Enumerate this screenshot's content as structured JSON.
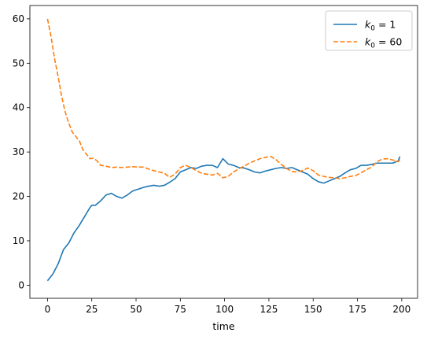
{
  "chart_data": {
    "type": "line",
    "title": "",
    "xlabel": "time",
    "ylabel": "",
    "xlim": [
      -9.95,
      208.95
    ],
    "ylim": [
      -2.95,
      63.0
    ],
    "xticks": [
      0,
      25,
      50,
      75,
      100,
      125,
      150,
      175,
      200
    ],
    "yticks": [
      0,
      10,
      20,
      30,
      40,
      50,
      60
    ],
    "grid": false,
    "legend_position": "top-right",
    "series": [
      {
        "name": "k0=1",
        "legend_base": "k",
        "legend_sub": "0",
        "legend_rest": " = 1",
        "color": "#1f77b4",
        "dash": "solid",
        "x": [
          0,
          3,
          6,
          9,
          12,
          15,
          18,
          21,
          24,
          25,
          27,
          30,
          33,
          36,
          39,
          42,
          45,
          48,
          51,
          54,
          57,
          60,
          63,
          66,
          69,
          72,
          75,
          78,
          81,
          84,
          87,
          90,
          93,
          96,
          99,
          102,
          105,
          108,
          111,
          114,
          117,
          120,
          123,
          126,
          129,
          132,
          135,
          138,
          141,
          144,
          147,
          150,
          153,
          156,
          159,
          162,
          165,
          168,
          171,
          174,
          177,
          180,
          183,
          186,
          189,
          192,
          195,
          198,
          199
        ],
        "y": [
          1,
          2.5,
          4.8,
          8,
          9.5,
          11.8,
          13.5,
          15.5,
          17.5,
          18,
          18,
          19,
          20.3,
          20.7,
          20,
          19.6,
          20.3,
          21.2,
          21.6,
          22,
          22.3,
          22.5,
          22.3,
          22.5,
          23.2,
          24,
          25.5,
          26,
          26.5,
          26.3,
          26.8,
          27,
          27,
          26.5,
          28.5,
          27.3,
          27,
          26.5,
          26.4,
          26,
          25.5,
          25.3,
          25.7,
          26,
          26.3,
          26.5,
          26.3,
          26.5,
          26,
          25.5,
          25,
          24,
          23.3,
          23,
          23.5,
          24,
          24.5,
          25.3,
          26,
          26.3,
          27,
          27,
          27.2,
          27.5,
          27.5,
          27.5,
          27.5,
          28,
          29
        ]
      },
      {
        "name": "k0=60",
        "legend_base": "k",
        "legend_sub": "0",
        "legend_rest": " = 60",
        "color": "#ff7f0e",
        "dash": "dashed",
        "x": [
          0,
          2,
          4,
          6,
          8,
          10,
          12,
          14,
          16,
          18,
          20,
          22,
          24,
          26,
          28,
          30,
          33,
          36,
          39,
          42,
          45,
          48,
          51,
          54,
          57,
          60,
          63,
          66,
          69,
          72,
          75,
          78,
          81,
          84,
          87,
          90,
          93,
          96,
          99,
          102,
          105,
          108,
          111,
          114,
          117,
          120,
          123,
          126,
          129,
          132,
          135,
          138,
          141,
          144,
          147,
          150,
          153,
          156,
          159,
          162,
          165,
          168,
          171,
          174,
          177,
          180,
          183,
          186,
          189,
          192,
          195,
          198,
          199
        ],
        "y": [
          60,
          56,
          51,
          47,
          42.5,
          39,
          36.5,
          34.5,
          33.5,
          32.5,
          30.5,
          29.5,
          28.5,
          28.6,
          28,
          27,
          26.8,
          26.5,
          26.6,
          26.5,
          26.6,
          26.7,
          26.6,
          26.6,
          26.2,
          25.8,
          25.5,
          25.2,
          24.3,
          25,
          26.5,
          27,
          26.5,
          25.8,
          25.2,
          25,
          24.8,
          25.2,
          24.2,
          24.5,
          25.5,
          26.2,
          26.8,
          27.5,
          28,
          28.5,
          28.8,
          29,
          28.3,
          27.2,
          26.3,
          25.6,
          25.5,
          25.8,
          26.4,
          25.8,
          24.8,
          24.5,
          24.3,
          24.2,
          24,
          24.2,
          24.5,
          24.7,
          25.3,
          26,
          26.6,
          27.8,
          28.4,
          28.5,
          28.2,
          27.8,
          28.3
        ]
      }
    ]
  }
}
